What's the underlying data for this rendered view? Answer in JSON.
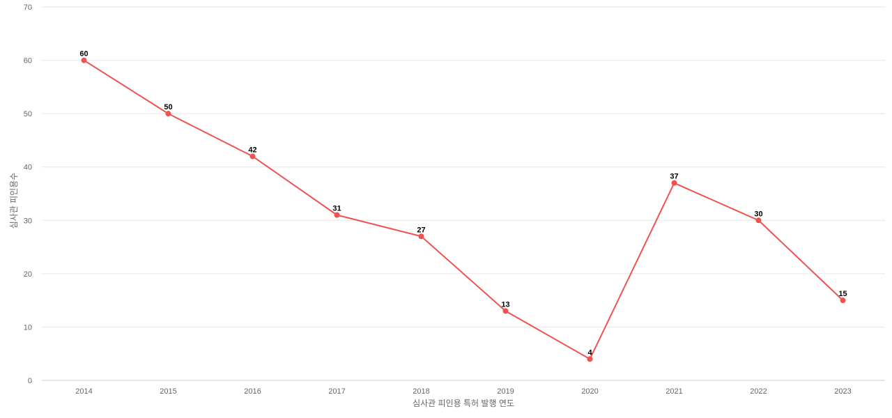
{
  "chart_data": {
    "type": "line",
    "categories": [
      "2014",
      "2015",
      "2016",
      "2017",
      "2018",
      "2019",
      "2020",
      "2021",
      "2022",
      "2023"
    ],
    "series": [
      {
        "values": [
          60,
          50,
          42,
          31,
          27,
          13,
          4,
          37,
          30,
          15
        ],
        "color": "#ef5350"
      }
    ],
    "title": "",
    "xlabel": "심사관 피인용 특허 발행 연도",
    "ylabel": "심사관 피인용수",
    "ylim": [
      0,
      70
    ],
    "yticks": [
      0,
      10,
      20,
      30,
      40,
      50,
      60,
      70
    ],
    "grid": true,
    "data_labels": true,
    "colors": {
      "grid": "#e6e6e6",
      "axis_text": "#666666",
      "data_label": "#000000"
    }
  }
}
